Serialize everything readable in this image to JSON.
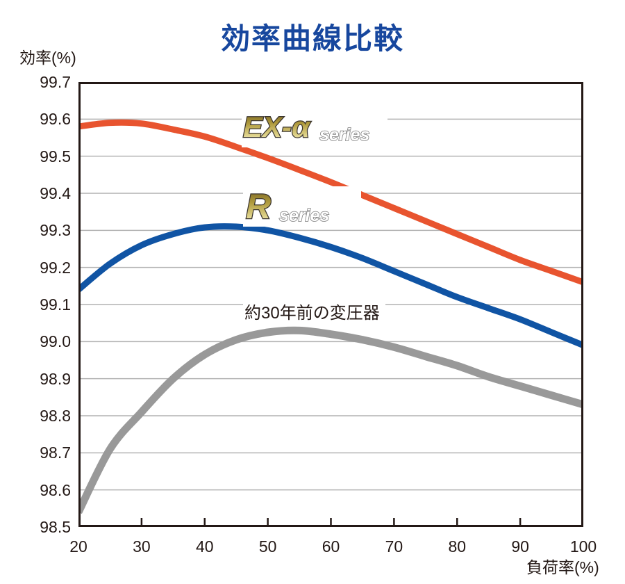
{
  "title": "効率曲線比較",
  "colors": {
    "title": "#17479e",
    "axis": "#231815",
    "grid": "#b2b2b2",
    "ex_alpha_curve": "#e8542f",
    "r_curve": "#1054a4",
    "old_curve": "#999999",
    "logo_gold_dark": "#6e5a1c",
    "logo_gold_light": "#f7f2cf"
  },
  "logos": {
    "ex_main": "EX-α",
    "ex_sub": "series",
    "r_main": "R",
    "r_sub": "series"
  },
  "chart_data": {
    "type": "line",
    "title": "効率曲線比較",
    "xlabel": "負荷率(%)",
    "ylabel": "効率(%)",
    "xlim": [
      20,
      100
    ],
    "ylim": [
      98.5,
      99.7
    ],
    "grid": true,
    "legend_position": "inline-labels",
    "x_tick_labels": [
      "20",
      "30",
      "40",
      "50",
      "60",
      "70",
      "80",
      "90",
      "100"
    ],
    "y_tick_labels": [
      "99.7",
      "99.6",
      "99.5",
      "99.4",
      "99.3",
      "99.2",
      "99.1",
      "99.0",
      "98.9",
      "98.8",
      "98.7",
      "98.6",
      "98.5"
    ],
    "x": [
      20,
      25,
      30,
      35,
      40,
      45,
      50,
      55,
      60,
      65,
      70,
      75,
      80,
      85,
      90,
      95,
      100
    ],
    "series": [
      {
        "name": "約30年前の変圧器",
        "color": "#999999",
        "stroke_width": 11,
        "values": [
          98.54,
          98.71,
          98.81,
          98.9,
          98.965,
          99.005,
          99.025,
          99.03,
          99.02,
          99.005,
          98.985,
          98.96,
          98.935,
          98.905,
          98.88,
          98.855,
          98.83
        ]
      },
      {
        "name": "R series",
        "color": "#1054a4",
        "stroke_width": 9,
        "values": [
          99.14,
          99.21,
          99.26,
          99.29,
          99.308,
          99.31,
          99.3,
          99.28,
          99.255,
          99.225,
          99.19,
          99.155,
          99.12,
          99.09,
          99.06,
          99.025,
          98.99
        ]
      },
      {
        "name": "EX-α series",
        "color": "#e8542f",
        "stroke_width": 9,
        "values": [
          99.58,
          99.59,
          99.588,
          99.572,
          99.553,
          99.525,
          99.495,
          99.463,
          99.43,
          99.395,
          99.36,
          99.325,
          99.29,
          99.255,
          99.22,
          99.19,
          99.16
        ]
      }
    ],
    "annotations": [
      {
        "text": "約30年前の変圧器",
        "x": 47,
        "y": 99.12
      }
    ]
  }
}
